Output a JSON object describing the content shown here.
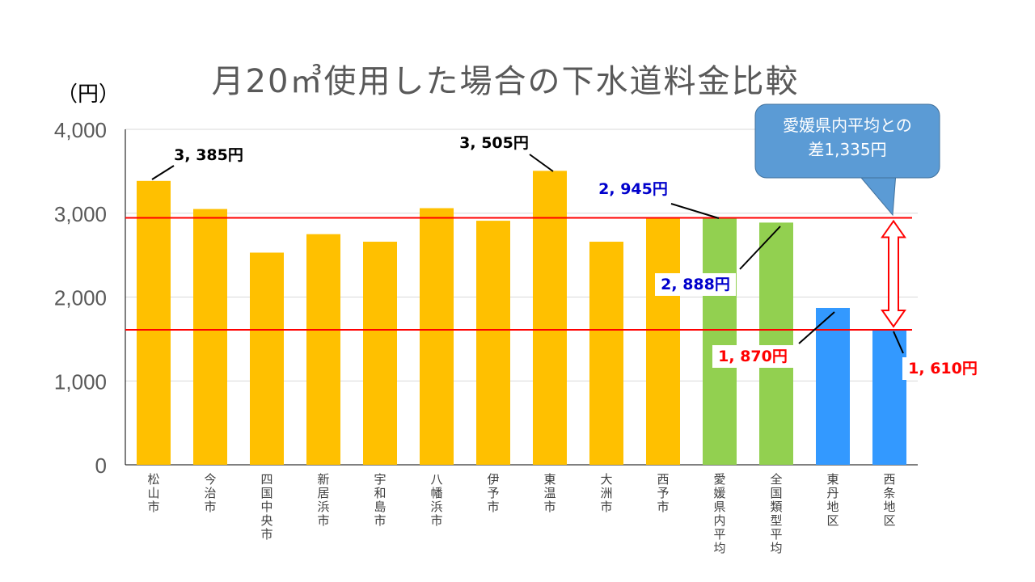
{
  "chart_data": {
    "type": "bar",
    "title": "月20㎥使用した場合の下水道料金比較",
    "unit_label": "（円）",
    "categories": [
      "松山市",
      "今治市",
      "四国中央市",
      "新居浜市",
      "宇和島市",
      "八幡浜市",
      "伊予市",
      "東温市",
      "大洲市",
      "西予市",
      "愛媛県内平均",
      "全国類型平均",
      "東丹地区",
      "西条地区"
    ],
    "values": [
      3385,
      3050,
      2530,
      2750,
      2660,
      3060,
      2910,
      3505,
      2660,
      2945,
      2945,
      2888,
      1870,
      1610
    ],
    "colors": [
      "#FFC000",
      "#FFC000",
      "#FFC000",
      "#FFC000",
      "#FFC000",
      "#FFC000",
      "#FFC000",
      "#FFC000",
      "#FFC000",
      "#FFC000",
      "#92D050",
      "#92D050",
      "#3399FF",
      "#3399FF"
    ],
    "ylim": [
      0,
      4000
    ],
    "yticks": [
      0,
      1000,
      2000,
      3000,
      4000
    ],
    "ytick_labels": [
      "0",
      "1,000",
      "2,000",
      "3,000",
      "4,000"
    ],
    "grid": true,
    "reference_lines": [
      2945,
      1610
    ],
    "reference_line_color": "#FF0000",
    "annotations": [
      {
        "text": "3, 385円",
        "index": 0,
        "color": "#000000"
      },
      {
        "text": "3, 505円",
        "index": 7,
        "color": "#000000"
      },
      {
        "text": "2, 945円",
        "index": 10,
        "color": "#0000CC"
      },
      {
        "text": "2, 888円",
        "index": 11,
        "color": "#0000CC"
      },
      {
        "text": "1, 870円",
        "index": 12,
        "color": "#FF0000"
      },
      {
        "text": "1, 610円",
        "index": 13,
        "color": "#FF0000"
      }
    ],
    "callout": {
      "line1": "愛媛県内平均との",
      "line2": "差1,335円",
      "color": "#5B9BD5"
    }
  }
}
